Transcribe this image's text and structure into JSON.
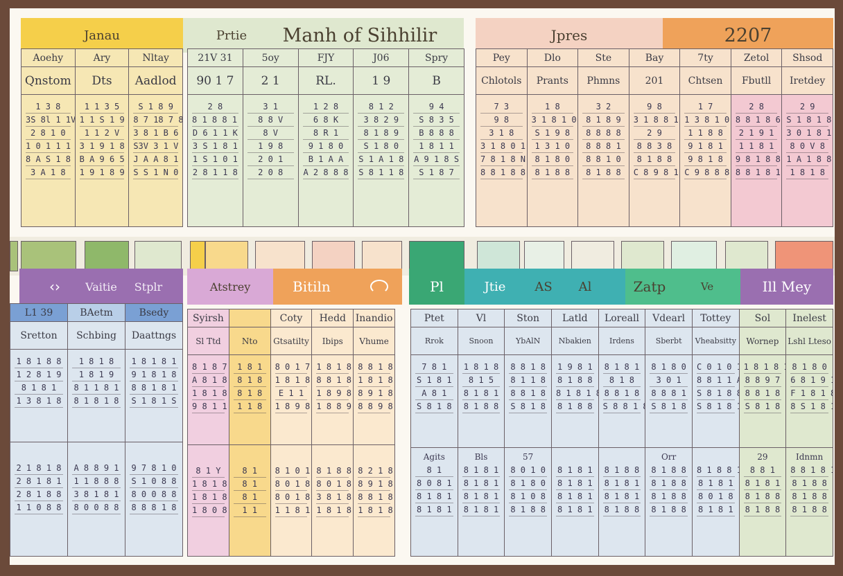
{
  "colors": {
    "frame": "#6b4a3a",
    "paper": "#fbf8f1",
    "yellow": "#f5cf4a",
    "sage": "#dfe8cf",
    "peach_band": "#f4d2c2",
    "orange": "#efa25a",
    "purple": "#9a6fb0",
    "lilac": "#e3c3e3",
    "blue": "#7aa0d4",
    "teal": "#3fb0b2",
    "green": "#3aa774",
    "mint": "#4fbe8c",
    "olive": "#a9c27a"
  },
  "top_headers": {
    "january": "Janau",
    "prefix": "Prtie",
    "title": "Manh of Sihhilir",
    "month": "Jpres",
    "year": "2207"
  },
  "mid_headers": {
    "a": "Vaitie",
    "b": "Stplr",
    "c": "Atstrey",
    "d": "Bitiln",
    "e": "Pl",
    "f": "Jtie",
    "g": "AS",
    "h": "Al",
    "i": "Zatp",
    "j": "Ve",
    "k": "Ill Mey"
  },
  "tl": {
    "heads": [
      "Aoehy",
      "Ary",
      "Nltay"
    ],
    "subs": [
      "Qnstom",
      "Dts",
      "Aadlod"
    ],
    "rows": [
      [
        "1 3 8",
        "1 1 3 5",
        "S 1 8 9"
      ],
      [
        "3S 8l 1 1V",
        "1 1 S 1 9 0",
        "8 7 18 7 8R"
      ],
      [
        "2 8 1 0",
        "1 1 2 V",
        "3 8 1 B 6"
      ],
      [
        "1 0 1 1 1",
        "3 1 9 1 8",
        "S3V 3 1 V"
      ],
      [
        "8 A S 1 8 9",
        "B A 9 6 5",
        "J A A 8 1 8"
      ],
      [
        "3 A 1 8",
        "1 9 1 8 9",
        "S S 1 N 0 1 T"
      ]
    ]
  },
  "tm": {
    "heads": [
      "21V 31",
      "5oy",
      "FJY",
      "J06",
      "Spry"
    ],
    "subs": [
      "90   1 7",
      "2 1",
      "RL.",
      "1 9",
      "B"
    ],
    "rows": [
      [
        "2 8",
        "3 1",
        "1 2 8",
        "8 1 2",
        "9 4"
      ],
      [
        "8 1 8 8 1 8",
        "8 8 V",
        "6 8 K",
        "3 8 2 9",
        "S 8 3 5"
      ],
      [
        "D 6 1 1 K",
        "8 V",
        "8 R 1",
        "8 1 8 9",
        "B 8 8 8"
      ],
      [
        "3 S 1 8 1",
        "1 9 8",
        "9 1 8 0",
        "S 1 8 0",
        "1 8 1 1"
      ],
      [
        "1 S 1 0 1",
        "2 0 1",
        "B 1 A A",
        "S 1 A 1 8",
        "A 9 1 8 S"
      ],
      [
        "2 8 1 1 8",
        "2 0 8",
        "A 2 8 8 8",
        "S 8 1 1 8",
        "S 1 8 7"
      ]
    ]
  },
  "tr": {
    "heads": [
      "Pey",
      "Dlo",
      "Ste",
      "Bay",
      "7ty",
      "Zetol",
      "Shsod"
    ],
    "subs": [
      "Chlotols",
      "Prants",
      "Phmns",
      "201",
      "Chtsen",
      "Fbutll",
      "Iretdey"
    ],
    "rows": [
      [
        "7 3",
        "1 8",
        "3 2",
        "9 8",
        "1 7",
        "2 8",
        "2 9"
      ],
      [
        "9 8",
        "3 1 8 1 0",
        "8 1 8 9",
        "3 1 8 8 1",
        "1 3 8 1 0",
        "8 8 1 8 6",
        "S 1 8 1 8"
      ],
      [
        "3 1 8",
        "S 1 9 8",
        "8 8 8 8",
        "2 9",
        "1 1 8 8",
        "2 1 9 1",
        "3 0 1 8 1"
      ],
      [
        "3 1 8 0 1",
        "1 3 1 0",
        "8 8 8 1",
        "8 8 3 8",
        "9 1 8 1",
        "1 1 8 1",
        "8 0 V 8"
      ],
      [
        "7 8 1 8 N",
        "8 1 8 0",
        "8 8 1 0",
        "8 1 8 8",
        "9 8 1 8",
        "9 8 1 8 8",
        "1 A 1 8 8"
      ],
      [
        "8 8 1 8 8",
        "8 1 8 8",
        "8 1 8 8",
        "C 8 9 8 1 0",
        "C 9 8 8 8",
        "8 8 1 8 1",
        "1 8 1 8"
      ]
    ]
  },
  "bl": {
    "heads": [
      "L1 39",
      "BAetm",
      "Bsedy"
    ],
    "subs": [
      "Sretton",
      "Schbing",
      "Daattngs"
    ],
    "rows_top": [
      [
        "1 8 1 8 8",
        "1 8 1 8",
        "1 8 1 8 1"
      ],
      [
        "1 2 8 1 9",
        "1 8 1 9",
        "9 1 8 1 8"
      ],
      [
        "8 1 8 1",
        "8 1 1 8 1",
        "8 8 1 8 1"
      ],
      [
        "1 3 8 1 8",
        "8 1 8 1 8",
        "S 1 8 1 S"
      ]
    ],
    "rows_bottom": [
      [
        "2 1 8 1 8",
        "A 8 8 9 1",
        "9 7 8 1 0"
      ],
      [
        "2 8 1 8 1",
        "1 1 8 8 8",
        "S 1 0 8 8"
      ],
      [
        "2 8 1 8 8",
        "3 8 1 8 1",
        "8 0 0 8 8"
      ],
      [
        "1 1 0 8 8",
        "8 0 0 8 8",
        "8 8 8 1 8"
      ]
    ]
  },
  "bm": {
    "heads": [
      "Syirsh",
      "",
      "Coty",
      "Hedd",
      "Inandio"
    ],
    "subs": [
      "Sl Ttd",
      "Nto",
      "Gtsatilty",
      "Ibips",
      "Vhume"
    ],
    "rows_top": [
      [
        "8 1 8 7",
        "1 8 1",
        "8 0 1 7",
        "1 8 1 8",
        "8 8 1 8"
      ],
      [
        "A 8 1 8",
        "8 1 8",
        "1 8 1 8",
        "8 8 1 8",
        "1 8 1 8"
      ],
      [
        "1 8 1 8",
        "8 1 8",
        "E 1 1",
        "1 8 9 8",
        "8 9 1 8 8"
      ],
      [
        "9 8 1 1",
        "1 1 8",
        "1 8 9 8",
        "1 8 8 9",
        "8 8 9 8"
      ]
    ],
    "rows_bottom": [
      [
        "8 1 Y",
        "8 1",
        "8 1 0 1 V 8",
        "8 1 8 8",
        "8 2 1 8 8"
      ],
      [
        "1 8 1 8",
        "8 1",
        "8 0 1 8 1",
        "8 0 1 8 1",
        "8 9 1 8"
      ],
      [
        "1 8 1 8 1",
        "8 1",
        "8 0 1 8 1",
        "3 8 1 8 1",
        "8 8 1 8 1"
      ],
      [
        "1 8 0 8 1",
        "1 1",
        "1 1 8 1 8",
        "1 8 1 8 1",
        "1 8 1 8 8"
      ]
    ]
  },
  "br": {
    "heads": [
      "Ptet",
      "Vl",
      "Ston",
      "Latld",
      "Loreall",
      "Vdearl",
      "Tottey",
      "Sol",
      "Inelest"
    ],
    "subs": [
      "Rrok",
      "Snoon",
      "YbAlN",
      "Nbakien",
      "Irdens",
      "Sberbt",
      "Vheabsitty",
      "Wornep",
      "Lshl Lteso"
    ],
    "rows_top": [
      [
        "7 8 1",
        "1 8 1 8",
        "8 8 1 8",
        "1 9 8 1",
        "8 1 8 1",
        "8 1 8 0",
        "C 0 1 0 1",
        "1 8 1 8 1",
        "8 1 8 0"
      ],
      [
        "S 1 8 1",
        "8 1 5",
        "8 1 1 8",
        "8 1 8 8",
        "8 1 8",
        "3 0 1",
        "8 8 1 1 A",
        "8 8 9 7",
        "6 8 1 9 1"
      ],
      [
        "A 8 1",
        "8 1 8 1",
        "8 8 1 8",
        "8 1 8 1 8",
        "8 8 1 8",
        "8 8 8 1",
        "S 8 1 8 8",
        "8 8 1 8",
        "F 1 8 1 8"
      ],
      [
        "S 8 1 8",
        "8 1 8 8",
        "S 8 1 8",
        "8 1 8 8",
        "S 8 8 1 8",
        "S 8 1 8",
        "S 8 1 8 1",
        "S 8 1 8",
        "8 S 1 8 1"
      ]
    ],
    "rows_bottom": [
      [
        "8 1",
        "8 1 8 1",
        "8 0 1 0",
        "8 1 8 1",
        "8 1 8 8",
        "8 1 8 8",
        "8 1 8 8 1",
        "8 8 1",
        "8 8 1 8 1"
      ],
      [
        "8 0 8 1",
        "8 1 8 1",
        "8 1 8 0",
        "8 1 8 1",
        "8 1 8 1",
        "8 1 8 8",
        "8 1 8 1",
        "8 1 8 1",
        "8 1 8 8"
      ],
      [
        "8 1 8 1",
        "8 1 8 1",
        "8 1 0 8",
        "8 1 8 1",
        "8 1 8 1",
        "8 1 8 8",
        "8 0 1 8",
        "8 1 8 8",
        "8 1 8 8"
      ],
      [
        "8 1 8 1",
        "8 1 8 1",
        "8 1 8 8",
        "8 1 8 1",
        "8 1 8 8",
        "8 1 8 8",
        "8 1 8 1",
        "8 1 8 8",
        "8 1 8 8"
      ]
    ],
    "bottom_heads": [
      "Agits",
      "Bls",
      "57",
      "",
      "",
      "Orr",
      "",
      "29",
      "Idnmn"
    ]
  }
}
